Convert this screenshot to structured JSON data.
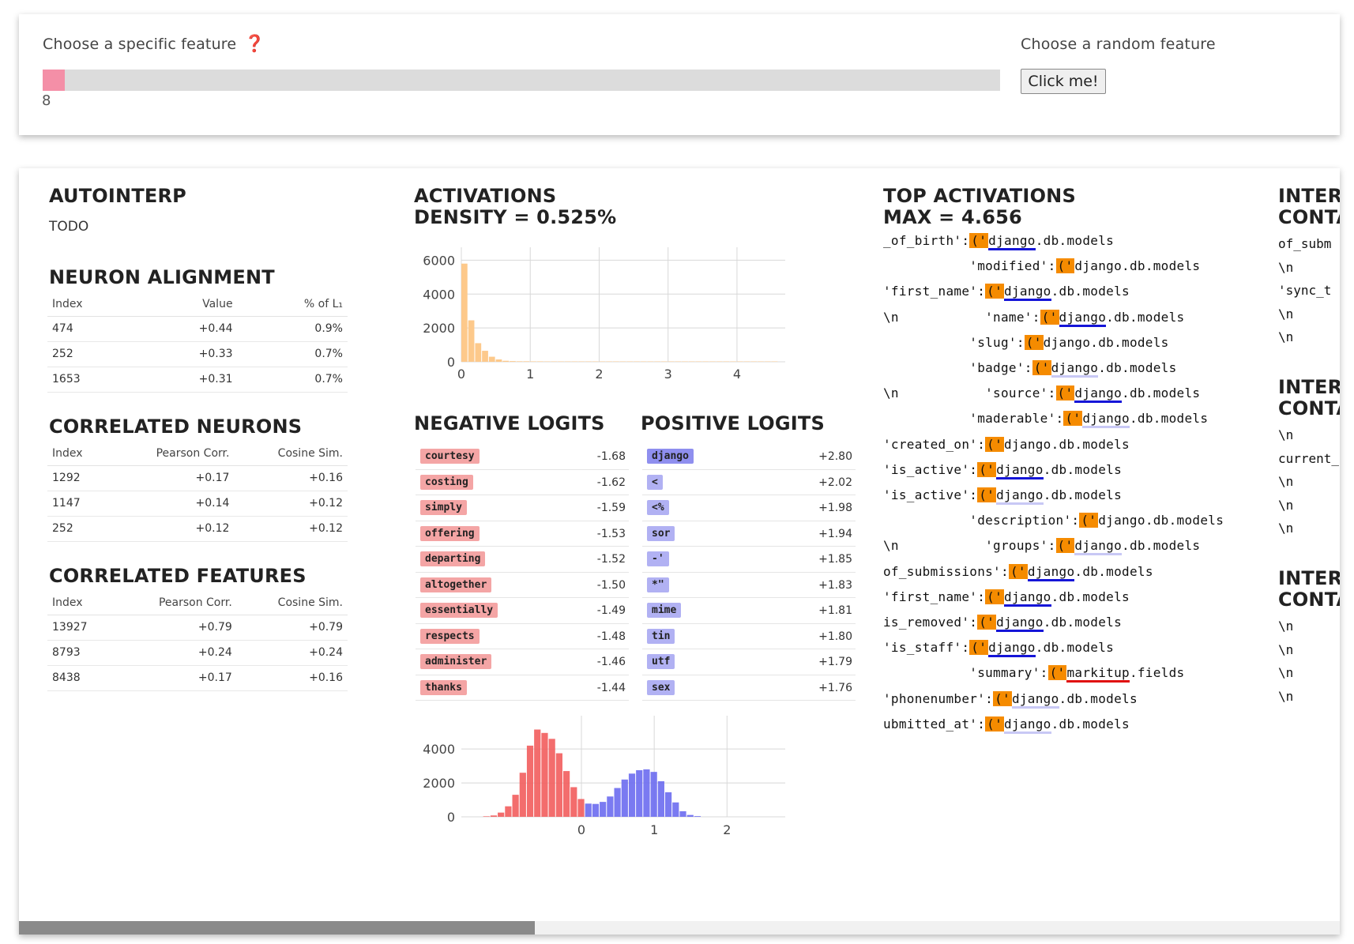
{
  "controls": {
    "specific_label": "Choose a specific feature",
    "help_glyph": "❓",
    "slider_value": "8",
    "slider_fraction": 0.0,
    "random_label": "Choose a random feature",
    "random_button": "Click me!"
  },
  "autointerp": {
    "title": "AUTOINTERP",
    "text": "TODO"
  },
  "neuron_alignment": {
    "title": "NEURON ALIGNMENT",
    "headers": [
      "Index",
      "Value",
      "% of L₁"
    ],
    "rows": [
      [
        "474",
        "+0.44",
        "0.9%"
      ],
      [
        "252",
        "+0.33",
        "0.7%"
      ],
      [
        "1653",
        "+0.31",
        "0.7%"
      ]
    ]
  },
  "correlated_neurons": {
    "title": "CORRELATED NEURONS",
    "headers": [
      "Index",
      "Pearson Corr.",
      "Cosine Sim."
    ],
    "rows": [
      [
        "1292",
        "+0.17",
        "+0.16"
      ],
      [
        "1147",
        "+0.14",
        "+0.12"
      ],
      [
        "252",
        "+0.12",
        "+0.12"
      ]
    ]
  },
  "correlated_features": {
    "title": "CORRELATED FEATURES",
    "headers": [
      "Index",
      "Pearson Corr.",
      "Cosine Sim."
    ],
    "rows": [
      [
        "13927",
        "+0.79",
        "+0.79"
      ],
      [
        "8793",
        "+0.24",
        "+0.24"
      ],
      [
        "8438",
        "+0.17",
        "+0.16"
      ]
    ]
  },
  "activations": {
    "title_line1": "ACTIVATIONS",
    "title_line2": "DENSITY = 0.525%",
    "bar_color": "#fdc98b"
  },
  "negative_logits": {
    "title": "NEGATIVE LOGITS",
    "color": "#f4a5a5",
    "items": [
      {
        "token": "courtesy",
        "value": "-1.68"
      },
      {
        "token": "costing",
        "value": "-1.62"
      },
      {
        "token": "simply",
        "value": "-1.59"
      },
      {
        "token": "offering",
        "value": "-1.53"
      },
      {
        "token": "departing",
        "value": "-1.52"
      },
      {
        "token": "altogether",
        "value": "-1.50"
      },
      {
        "token": "essentially",
        "value": "-1.49"
      },
      {
        "token": "respects",
        "value": "-1.48"
      },
      {
        "token": "administer",
        "value": "-1.46"
      },
      {
        "token": "thanks",
        "value": "-1.44"
      }
    ]
  },
  "positive_logits": {
    "title": "POSITIVE LOGITS",
    "color_strong": "#8f8fef",
    "color_weak": "#b1b1f3",
    "items": [
      {
        "token": "django",
        "value": "+2.80"
      },
      {
        "token": "<",
        "value": "+2.02"
      },
      {
        "token": "<%",
        "value": "+1.98"
      },
      {
        "token": "sor",
        "value": "+1.94"
      },
      {
        "token": "-'",
        "value": "+1.85"
      },
      {
        "token": "*\"",
        "value": "+1.83"
      },
      {
        "token": "mime",
        "value": "+1.81"
      },
      {
        "token": "tin",
        "value": "+1.80"
      },
      {
        "token": "utf",
        "value": "+1.79"
      },
      {
        "token": "sex",
        "value": "+1.76"
      }
    ]
  },
  "top_activations": {
    "title_line1": "TOP ACTIVATIONS",
    "title_line2": "MAX = 4.656",
    "highlight_color": "#f58b00",
    "rows": [
      {
        "pre": "_of_birth':",
        "hl": "('",
        "tok": "django",
        "post": ".db.models",
        "ul": "strong"
      },
      {
        "pre": "           'modified':",
        "hl": "('",
        "tok": "django",
        "post": ".db.models",
        "ul": "none"
      },
      {
        "pre": "'first_name':",
        "hl": "('",
        "tok": "django",
        "post": ".db.models",
        "ul": "strong"
      },
      {
        "pre": "\\n           'name':",
        "hl": "('",
        "tok": "django",
        "post": ".db.models",
        "ul": "strong"
      },
      {
        "pre": "           'slug':",
        "hl": "('",
        "tok": "django",
        "post": ".db.models",
        "ul": "none"
      },
      {
        "pre": "           'badge':",
        "hl": "('",
        "tok": "django",
        "post": ".db.models",
        "ul": "weak"
      },
      {
        "pre": "\\n           'source':",
        "hl": "('",
        "tok": "django",
        "post": ".db.models",
        "ul": "strong"
      },
      {
        "pre": "           'maderable':",
        "hl": "('",
        "tok": "django",
        "post": ".db.models",
        "ul": "weak"
      },
      {
        "pre": "'created_on':",
        "hl": "('",
        "tok": "django",
        "post": ".db.models",
        "ul": "none"
      },
      {
        "pre": "'is_active':",
        "hl": "('",
        "tok": "django",
        "post": ".db.models",
        "ul": "strong"
      },
      {
        "pre": "'is_active':",
        "hl": "('",
        "tok": "django",
        "post": ".db.models",
        "ul": "weak"
      },
      {
        "pre": "           'description':",
        "hl": "('",
        "tok": "django",
        "post": ".db.models",
        "ul": "none"
      },
      {
        "pre": "\\n           'groups':",
        "hl": "('",
        "tok": "django",
        "post": ".db.models",
        "ul": "weak"
      },
      {
        "pre": "of_submissions':",
        "hl": "('",
        "tok": "django",
        "post": ".db.models",
        "ul": "strong"
      },
      {
        "pre": "'first_name':",
        "hl": "('",
        "tok": "django",
        "post": ".db.models",
        "ul": "strong"
      },
      {
        "pre": "is_removed':",
        "hl": "('",
        "tok": "django",
        "post": ".db.models",
        "ul": "strong"
      },
      {
        "pre": "'is_staff':",
        "hl": "('",
        "tok": "django",
        "post": ".db.models",
        "ul": "strong"
      },
      {
        "pre": "           'summary':",
        "hl": "('",
        "tok": "markitup",
        "post": ".fields",
        "ul": "red"
      },
      {
        "pre": "'phonenumber':",
        "hl": "('",
        "tok": "django",
        "post": ".db.models",
        "ul": "weak"
      },
      {
        "pre": "ubmitted_at':",
        "hl": "('",
        "tok": "django",
        "post": ".db.models",
        "ul": "weak"
      }
    ]
  },
  "interventions": {
    "blocks": [
      {
        "title_line1": "INTERV",
        "title_line2": "CONTA",
        "lines": [
          "of_subm",
          "\\n",
          "'sync_t",
          "\\n",
          "\\n"
        ]
      },
      {
        "title_line1": "INTERV",
        "title_line2": "CONTA",
        "lines": [
          "\\n",
          "current_",
          "\\n",
          "\\n",
          "\\n"
        ]
      },
      {
        "title_line1": "INTERV",
        "title_line2": "CONTA",
        "lines": [
          "\\n",
          "\\n",
          "\\n          '",
          "\\n"
        ]
      }
    ]
  },
  "activation_hist": {
    "type": "bar",
    "x_ticks": [
      0,
      1,
      2,
      3,
      4
    ],
    "y_ticks": [
      0,
      2000,
      4000,
      6000
    ],
    "bin_width": 0.1,
    "bins_start": 0,
    "values": [
      5800,
      2450,
      1100,
      650,
      300,
      140,
      60,
      40,
      30,
      30,
      25,
      25,
      20,
      20,
      20,
      20,
      20,
      20,
      20,
      20,
      20,
      20,
      20,
      20,
      20,
      20,
      20,
      20,
      20,
      20,
      20,
      20,
      20,
      20,
      20,
      20,
      20,
      20,
      20,
      20,
      20,
      20,
      20,
      20,
      20,
      20
    ],
    "xlim": [
      0,
      4.7
    ],
    "ylim": [
      0,
      6300
    ]
  },
  "logit_hist": {
    "type": "bar",
    "x_ticks": [
      0,
      1,
      2
    ],
    "y_ticks": [
      0,
      2000,
      4000
    ],
    "bin_width": 0.1,
    "bins_start": -1.35,
    "neg_color": "#f25d5d",
    "pos_color": "#6c6cef",
    "values": [
      30,
      80,
      250,
      620,
      1300,
      2600,
      4200,
      5150,
      4950,
      4600,
      3750,
      2700,
      1750,
      1050,
      780,
      760,
      880,
      1200,
      1700,
      2200,
      2550,
      2750,
      2800,
      2650,
      2100,
      1450,
      850,
      330,
      110,
      40
    ],
    "xlim": [
      -1.65,
      2.8
    ],
    "ylim": [
      0,
      5500
    ]
  }
}
